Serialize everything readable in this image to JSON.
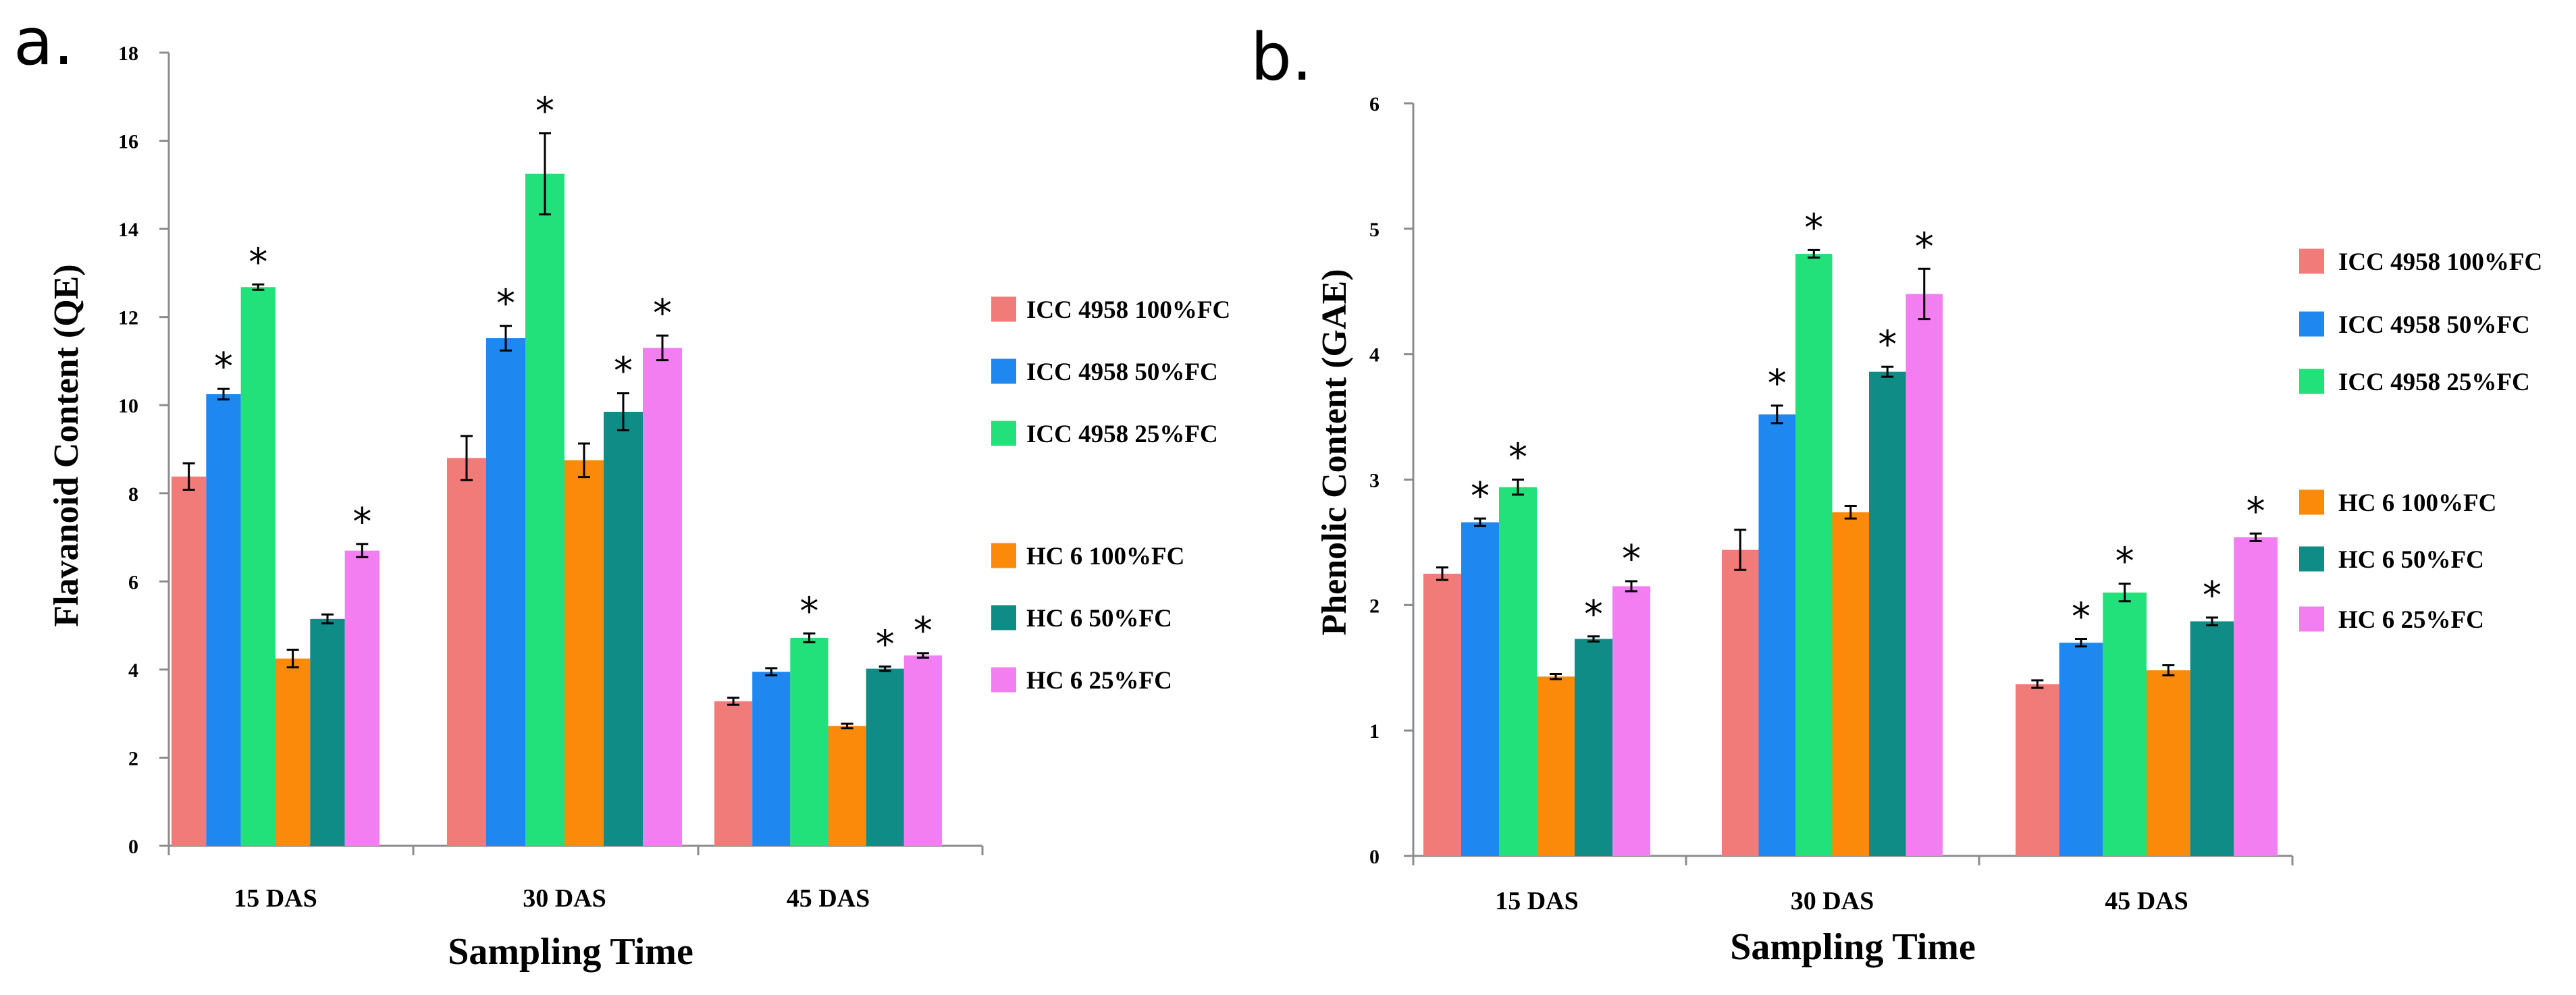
{
  "chart_data": [
    {
      "panel_label": "a.",
      "type": "bar",
      "ylabel": "Flavanoid Content (QE)",
      "xlabel": "Sampling Time",
      "categories": [
        "15 DAS",
        "30 DAS",
        "45 DAS"
      ],
      "ylim": [
        0,
        18
      ],
      "yticks": [
        "0",
        "2",
        "4",
        "6",
        "8",
        "10",
        "12",
        "14",
        "16",
        "18"
      ],
      "legend_position": "right",
      "significance_marker": "*",
      "series": [
        {
          "name": "ICC 4958 100%FC",
          "color": "#f07b78",
          "values": [
            8.38,
            8.8,
            3.28
          ],
          "errors": [
            0.3,
            0.5,
            0.08
          ],
          "significant": [
            false,
            false,
            false
          ]
        },
        {
          "name": "ICC 4958 50%FC",
          "color": "#1e88f0",
          "values": [
            10.25,
            11.52,
            3.95
          ],
          "errors": [
            0.12,
            0.28,
            0.08
          ],
          "significant": [
            true,
            true,
            false
          ]
        },
        {
          "name": "ICC 4958 25%FC",
          "color": "#22e07a",
          "values": [
            12.68,
            15.25,
            4.72
          ],
          "errors": [
            0.06,
            0.92,
            0.1
          ],
          "significant": [
            true,
            true,
            true
          ]
        },
        {
          "name": "HC 6 100%FC",
          "color": "#fb8a0a",
          "values": [
            4.25,
            8.75,
            2.72
          ],
          "errors": [
            0.2,
            0.38,
            0.05
          ],
          "significant": [
            false,
            false,
            false
          ]
        },
        {
          "name": "HC 6 50%FC",
          "color": "#0f8c86",
          "values": [
            5.15,
            9.85,
            4.02
          ],
          "errors": [
            0.1,
            0.42,
            0.05
          ],
          "significant": [
            false,
            true,
            true
          ]
        },
        {
          "name": "HC 6 25%FC",
          "color": "#f27ef2",
          "values": [
            6.7,
            11.3,
            4.32
          ],
          "errors": [
            0.15,
            0.28,
            0.05
          ],
          "significant": [
            true,
            true,
            true
          ]
        }
      ]
    },
    {
      "panel_label": "b.",
      "type": "bar",
      "ylabel": "Phenolic Content (GAE)",
      "xlabel": "Sampling Time",
      "categories": [
        "15 DAS",
        "30 DAS",
        "45 DAS"
      ],
      "ylim": [
        0,
        6
      ],
      "yticks": [
        "0",
        "1",
        "2",
        "3",
        "4",
        "5",
        "6"
      ],
      "legend_position": "right",
      "significance_marker": "*",
      "series": [
        {
          "name": "ICC 4958 100%FC",
          "color": "#f07b78",
          "values": [
            2.25,
            2.44,
            1.37
          ],
          "errors": [
            0.05,
            0.16,
            0.03
          ],
          "significant": [
            false,
            false,
            false
          ]
        },
        {
          "name": "ICC 4958 50%FC",
          "color": "#1e88f0",
          "values": [
            2.66,
            3.52,
            1.7
          ],
          "errors": [
            0.03,
            0.07,
            0.03
          ],
          "significant": [
            true,
            true,
            true
          ]
        },
        {
          "name": "ICC 4958 25%FC",
          "color": "#22e07a",
          "values": [
            2.94,
            4.8,
            2.1
          ],
          "errors": [
            0.06,
            0.03,
            0.07
          ],
          "significant": [
            true,
            true,
            true
          ]
        },
        {
          "name": "HC 6 100%FC",
          "color": "#fb8a0a",
          "values": [
            1.43,
            2.74,
            1.48
          ],
          "errors": [
            0.02,
            0.05,
            0.04
          ],
          "significant": [
            false,
            false,
            false
          ]
        },
        {
          "name": "HC 6 50%FC",
          "color": "#0f8c86",
          "values": [
            1.73,
            3.86,
            1.87
          ],
          "errors": [
            0.02,
            0.04,
            0.03
          ],
          "significant": [
            true,
            true,
            true
          ]
        },
        {
          "name": "HC 6 25%FC",
          "color": "#f27ef2",
          "values": [
            2.15,
            4.48,
            2.54
          ],
          "errors": [
            0.04,
            0.2,
            0.03
          ],
          "significant": [
            true,
            true,
            true
          ]
        }
      ]
    }
  ]
}
